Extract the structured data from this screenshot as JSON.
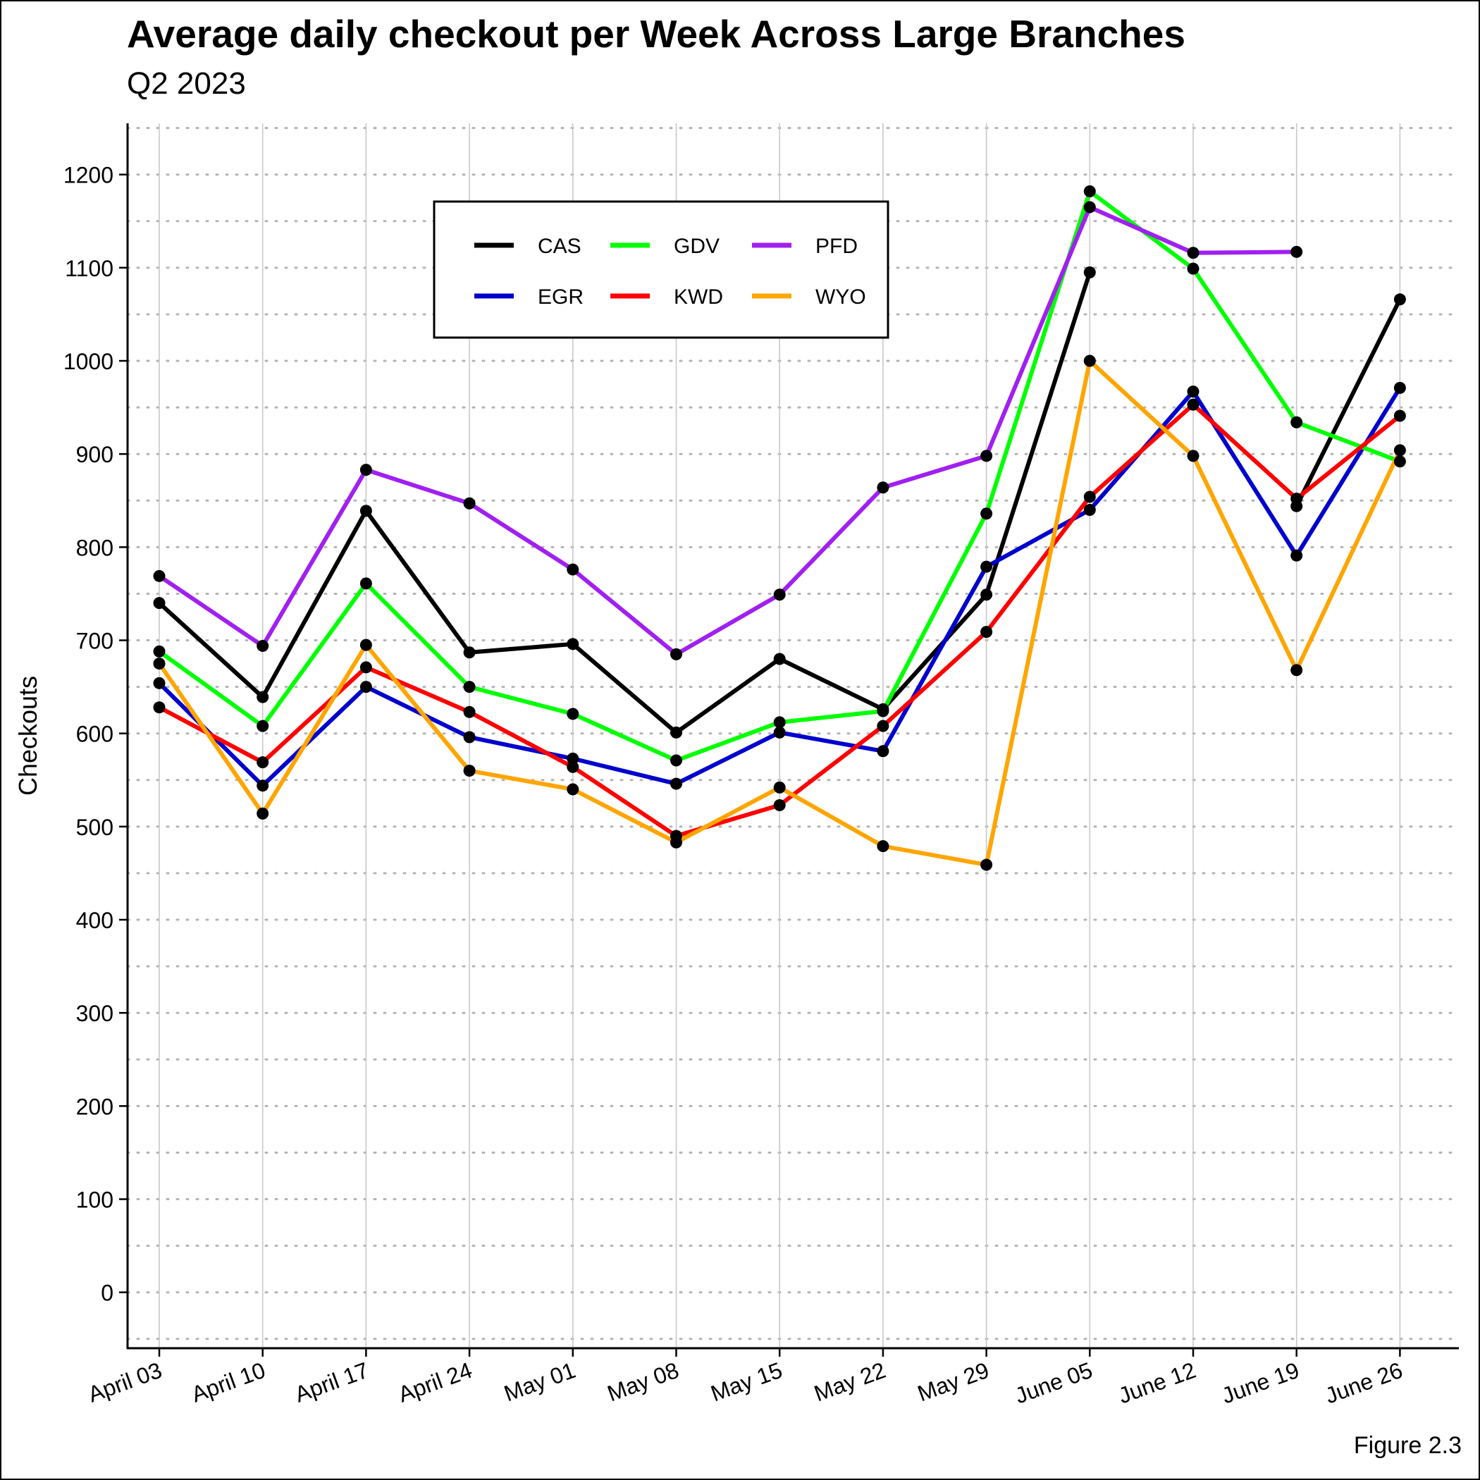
{
  "figure": {
    "title": "Average daily checkout per Week Across Large Branches",
    "subtitle": "Q2 2023",
    "caption": "Figure 2.3"
  },
  "chart_data": {
    "type": "line",
    "title": "Average daily checkout per Week Across Large Branches",
    "subtitle": "Q2 2023",
    "xlabel": "",
    "ylabel": "Checkouts",
    "categories": [
      "April 03",
      "April 10",
      "April 17",
      "April 24",
      "May 01",
      "May 08",
      "May 15",
      "May 22",
      "May 29",
      "June 05",
      "June 12",
      "June 19",
      "June 26"
    ],
    "ylim": [
      -60,
      1255
    ],
    "yticks": [
      0,
      100,
      200,
      300,
      400,
      500,
      600,
      700,
      800,
      900,
      1000,
      1100,
      1200
    ],
    "grid": true,
    "markers": true,
    "marker_color": "#000000",
    "legend_position": "top-center",
    "series": [
      {
        "name": "CAS",
        "color": "#000000",
        "values": [
          740,
          639,
          839,
          687,
          696,
          601,
          680,
          626,
          749,
          1095,
          null,
          844,
          1066
        ]
      },
      {
        "name": "EGR",
        "color": "#0000CD",
        "values": [
          654,
          544,
          650,
          596,
          573,
          546,
          601,
          581,
          779,
          840,
          967,
          791,
          971
        ]
      },
      {
        "name": "GDV",
        "color": "#00FF00",
        "values": [
          688,
          608,
          761,
          650,
          621,
          571,
          612,
          624,
          836,
          1182,
          1099,
          934,
          892
        ]
      },
      {
        "name": "KWD",
        "color": "#FF0000",
        "values": [
          628,
          569,
          671,
          623,
          564,
          490,
          523,
          608,
          709,
          854,
          953,
          852,
          941
        ]
      },
      {
        "name": "PFD",
        "color": "#A020F0",
        "values": [
          769,
          694,
          883,
          847,
          776,
          685,
          749,
          864,
          898,
          1165,
          1116,
          1117,
          null
        ]
      },
      {
        "name": "WYO",
        "color": "#FFA500",
        "values": [
          675,
          514,
          695,
          560,
          540,
          483,
          542,
          479,
          459,
          1000,
          898,
          668,
          904
        ]
      }
    ]
  }
}
